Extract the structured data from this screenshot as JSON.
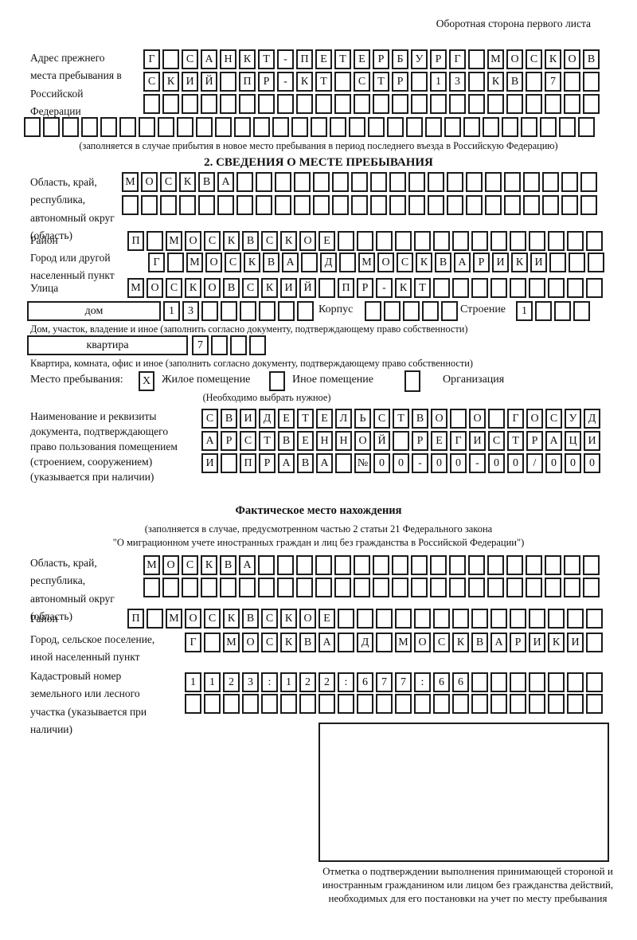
{
  "page": {
    "header_note": "Оборотная сторона первого листа"
  },
  "prev_address": {
    "label": "Адрес прежнего места пребывания в Российской Федерации",
    "row1": "Г САНКТ-ПЕТЕРБУРГ МОСКОВ",
    "row2": "СКИЙ ПР-КТ СТР 13 КВ 7  ",
    "row3": "                        ",
    "row4": "                              ",
    "note": "(заполняется в случае прибытия в новое место пребывания в период последнего въезда в Российскую Федерацию)"
  },
  "section2": {
    "title": "2. СВЕДЕНИЯ О МЕСТЕ ПРЕБЫВАНИЯ",
    "oblast": {
      "label": "Область, край, республика, автономный округ (область)",
      "row1": "МОСКВА                   ",
      "row2": "                         "
    },
    "rayon": {
      "label": "Район",
      "row": "П МОСКВСКОЕ              "
    },
    "gorod": {
      "label": "Город или другой населенный пункт",
      "row": "Г МОСКВА Д МОСКВАРИКИ   "
    },
    "ulitsa": {
      "label": "Улица",
      "row": "МОСКОВСКИЙ ПР-КТ         "
    },
    "dom": {
      "field_label": "дом",
      "cells": "13      ",
      "korpus_label": "Корпус",
      "korpus_cells": "     ",
      "stroenie_label": "Строение",
      "stroenie_cells": "1   ",
      "note": "Дом, участок, владение и иное (заполнить согласно документу, подтверждающему право собственности)"
    },
    "kvartira": {
      "field_label": "квартира",
      "cells": "7   ",
      "note": "Квартира, комната, офис и иное (заполнить согласно документу, подтверждающему право собственности)"
    },
    "mesto": {
      "label": "Место пребывания:",
      "option1_mark": "X",
      "option1_label": "Жилое помещение",
      "option2_mark": "",
      "option2_label": "Иное помещение",
      "option3_mark": "",
      "option3_label": "Организация",
      "note": "(Необходимо выбрать нужное)"
    },
    "document": {
      "label": "Наименование и реквизиты документа, подтверждающего право пользования помещением (строением, сооружением) (указывается при наличии)",
      "row1": "СВИДЕТЕЛЬСТВО О ГОСУД",
      "row2": "АРСТВЕННОЙ РЕГИСТРАЦИ",
      "row3": "И ПРАВА №00-00-00/000"
    }
  },
  "fact_section": {
    "title": "Фактическое место нахождения",
    "note1": "(заполняется в случае, предусмотренном частью 2 статьи 21 Федерального закона",
    "note2": "\"О миграционном учете иностранных граждан и лиц без гражданства в Российской Федерации\")",
    "oblast": {
      "label": "Область, край, республика, автономный округ (область)",
      "row1": "МОСКВА                  ",
      "row2": "                        "
    },
    "rayon": {
      "label": "Район",
      "row": "П МОСКВСКОЕ              "
    },
    "gorod": {
      "label": "Город, сельское поселение, иной населенный пункт",
      "row": "Г МОСКВА Д МОСКВАРИКИ "
    },
    "kadastr": {
      "label": "Кадастровый номер земельного или лесного участка (указывается при наличии)",
      "row1": "1123:122:677:66       ",
      "row2": "                      "
    },
    "stamp_caption": "Отметка о подтверждении выполнения принимающей стороной и иностранным гражданином или лицом без гражданства действий, необходимых для его постановки на учет по месту пребывания"
  }
}
